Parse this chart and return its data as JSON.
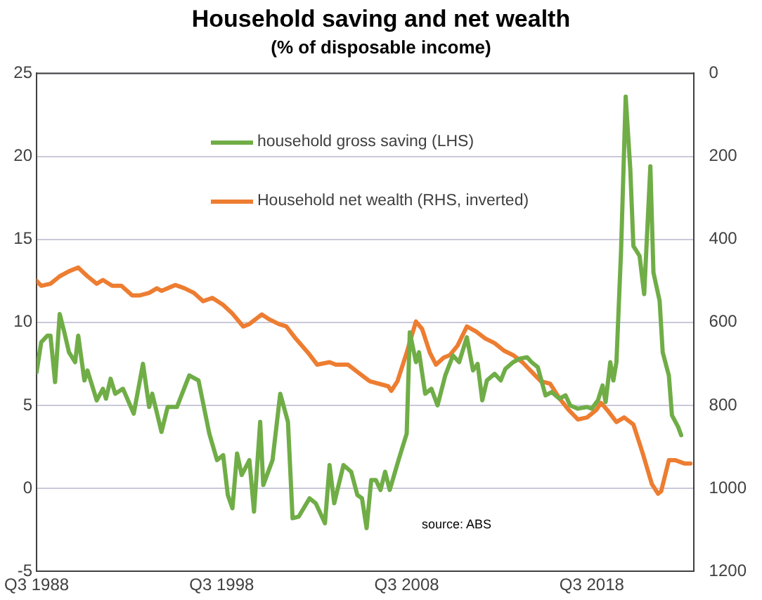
{
  "chart_data": {
    "type": "line",
    "title": "Household saving and net wealth",
    "subtitle": "(% of disposable income)",
    "xlim": [
      "1988-07",
      "2024-01"
    ],
    "xticks": [
      {
        "value": "1988-07",
        "label": "Q3 1988"
      },
      {
        "value": "1998-07",
        "label": "Q3 1998"
      },
      {
        "value": "2008-07",
        "label": "Q3 2008"
      },
      {
        "value": "2018-07",
        "label": "Q3 2018"
      }
    ],
    "ylim": [
      -5,
      25
    ],
    "yticks": [
      -5,
      0,
      5,
      10,
      15,
      20,
      25
    ],
    "y2lim": [
      1200,
      0
    ],
    "y2ticks": [
      0,
      200,
      400,
      600,
      800,
      1000,
      1200
    ],
    "grid": "y",
    "legend": "top",
    "marker": "none",
    "line_style": "solid",
    "annotations": [
      "source: ABS"
    ],
    "series": [
      {
        "name": "household gross saving (LHS)",
        "color": "#70ad47",
        "x": [
          "1988-07",
          "1988-10",
          "1989-02",
          "1989-04",
          "1989-07",
          "1989-10",
          "1990-01",
          "1990-04",
          "1990-08",
          "1990-10",
          "1991-02",
          "1991-04",
          "1991-10",
          "1992-02",
          "1992-04",
          "1992-07",
          "1992-10",
          "1993-03",
          "1993-10",
          "1994-04",
          "1994-08",
          "1994-10",
          "1995-04",
          "1995-08",
          "1996-02",
          "1996-10",
          "1997-04",
          "1997-11",
          "1998-04",
          "1998-08",
          "1998-11",
          "1999-02",
          "1999-05",
          "1999-08",
          "2000-01",
          "2000-04",
          "2000-08",
          "2000-10",
          "2001-04",
          "2001-09",
          "2002-02",
          "2002-05",
          "2002-09",
          "2003-04",
          "2003-08",
          "2004-02",
          "2004-05",
          "2004-08",
          "2005-02",
          "2005-07",
          "2005-11",
          "2006-02",
          "2006-05",
          "2006-08",
          "2006-11",
          "2007-02",
          "2007-05",
          "2007-08",
          "2008-02",
          "2008-07",
          "2008-09",
          "2009-01",
          "2009-03",
          "2009-07",
          "2009-11",
          "2010-03",
          "2010-08",
          "2011-01",
          "2011-05",
          "2011-10",
          "2012-02",
          "2012-05",
          "2012-08",
          "2012-11",
          "2013-04",
          "2013-08",
          "2013-11",
          "2014-04",
          "2014-08",
          "2015-01",
          "2015-04",
          "2015-08",
          "2016-01",
          "2016-05",
          "2016-10",
          "2017-02",
          "2017-05",
          "2017-10",
          "2018-04",
          "2018-07",
          "2018-11",
          "2019-02",
          "2019-04",
          "2019-07",
          "2019-09",
          "2019-11",
          "2020-02",
          "2020-05",
          "2020-08",
          "2020-10",
          "2021-02",
          "2021-05",
          "2021-09",
          "2021-11",
          "2022-03",
          "2022-05",
          "2022-09",
          "2022-11",
          "2023-03",
          "2023-05"
        ],
        "values": [
          7.0,
          8.8,
          9.2,
          9.2,
          6.4,
          10.5,
          9.4,
          8.2,
          7.6,
          9.2,
          6.5,
          7.1,
          5.3,
          6.0,
          5.4,
          6.6,
          5.7,
          6.0,
          4.5,
          7.5,
          4.9,
          5.7,
          3.4,
          4.9,
          4.9,
          6.8,
          6.5,
          3.3,
          1.7,
          2.0,
          -0.4,
          -1.2,
          2.1,
          0.8,
          1.7,
          -1.4,
          4.0,
          0.2,
          1.7,
          5.7,
          4.0,
          -1.8,
          -1.7,
          -0.6,
          -0.9,
          -2.1,
          1.4,
          -0.9,
          1.4,
          1.0,
          -0.4,
          -0.6,
          -2.4,
          0.5,
          0.5,
          -0.1,
          1.0,
          -0.1,
          1.8,
          3.3,
          9.4,
          7.6,
          8.2,
          5.7,
          6.0,
          5.0,
          6.8,
          8.0,
          7.6,
          9.1,
          7.1,
          7.5,
          5.3,
          6.5,
          6.9,
          6.5,
          7.2,
          7.6,
          7.8,
          7.9,
          7.6,
          7.3,
          5.6,
          5.8,
          5.4,
          5.6,
          5.0,
          4.8,
          4.9,
          4.8,
          5.3,
          6.2,
          5.2,
          7.6,
          6.5,
          7.6,
          14.3,
          23.6,
          19.2,
          14.6,
          14.0,
          11.7,
          19.4,
          13.0,
          11.3,
          8.2,
          6.8,
          4.4,
          3.7,
          3.2
        ]
      },
      {
        "name": "Household net wealth (RHS, inverted)",
        "color": "#ed7d31",
        "axis": "y2",
        "x": [
          "1988-07",
          "1988-10",
          "1989-04",
          "1989-10",
          "1990-04",
          "1990-10",
          "1991-04",
          "1991-10",
          "1992-02",
          "1992-08",
          "1993-02",
          "1993-09",
          "1994-02",
          "1994-08",
          "1995-01",
          "1995-04",
          "1996-01",
          "1996-07",
          "1997-01",
          "1997-07",
          "1998-01",
          "1998-08",
          "1999-02",
          "1999-09",
          "2000-01",
          "2000-09",
          "2001-02",
          "2001-08",
          "2002-01",
          "2002-07",
          "2003-03",
          "2003-09",
          "2004-05",
          "2004-09",
          "2005-05",
          "2006-01",
          "2006-07",
          "2007-07",
          "2007-09",
          "2008-01",
          "2008-07",
          "2009-01",
          "2009-05",
          "2009-10",
          "2010-02",
          "2010-07",
          "2010-11",
          "2011-04",
          "2011-10",
          "2012-04",
          "2012-10",
          "2013-04",
          "2013-10",
          "2014-04",
          "2014-10",
          "2015-04",
          "2015-10",
          "2016-04",
          "2016-10",
          "2017-04",
          "2017-10",
          "2018-04",
          "2018-10",
          "2019-01",
          "2019-05",
          "2019-11",
          "2020-04",
          "2020-10",
          "2021-04",
          "2021-10",
          "2022-02",
          "2022-04",
          "2022-09",
          "2023-01",
          "2023-07",
          "2023-11"
        ],
        "values": [
          500,
          512,
          507,
          489,
          477,
          468,
          489,
          507,
          498,
          512,
          512,
          535,
          535,
          529,
          518,
          524,
          510,
          518,
          529,
          549,
          541,
          558,
          579,
          610,
          604,
          581,
          593,
          604,
          610,
          639,
          673,
          702,
          696,
          702,
          702,
          725,
          742,
          754,
          765,
          742,
          673,
          598,
          616,
          673,
          702,
          685,
          679,
          656,
          610,
          622,
          639,
          650,
          668,
          679,
          696,
          719,
          742,
          748,
          783,
          811,
          834,
          829,
          811,
          794,
          811,
          840,
          829,
          846,
          915,
          990,
          1013,
          1007,
          932,
          932,
          940,
          940
        ]
      }
    ]
  }
}
